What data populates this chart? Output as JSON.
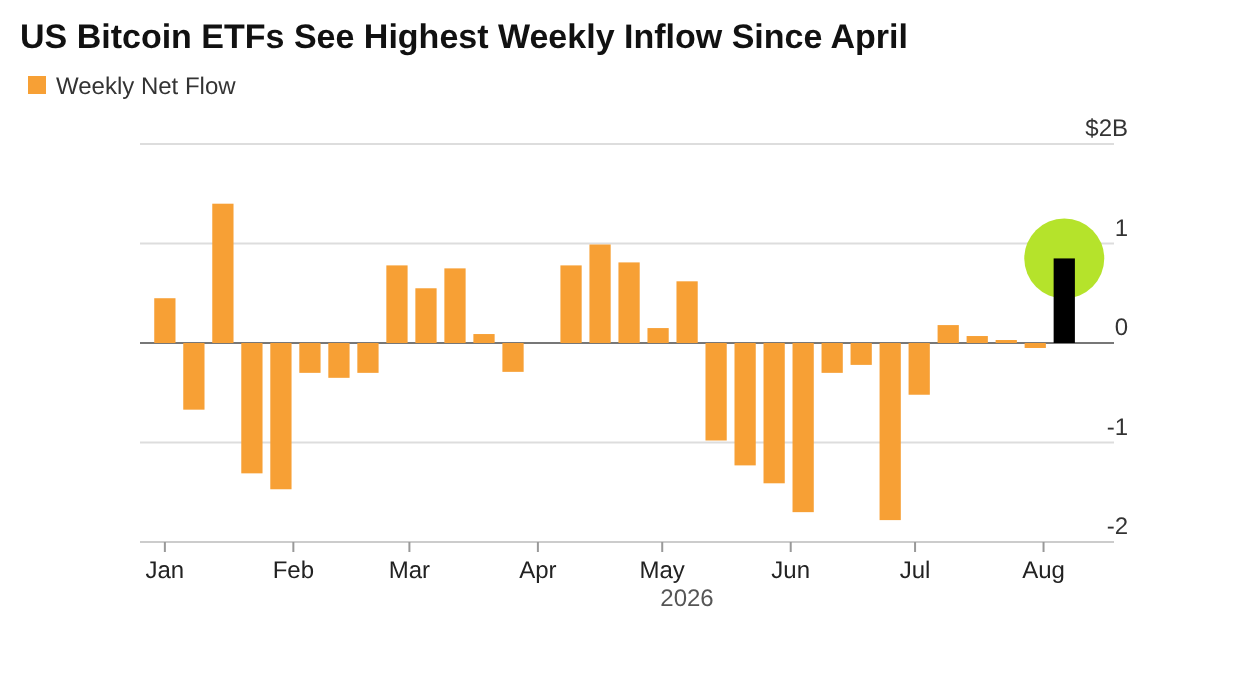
{
  "chart_data": {
    "type": "bar",
    "title": "US Bitcoin ETFs See Highest Weekly Inflow Since April",
    "xlabel": "2026",
    "x": [
      "2026-01-01",
      "2026-01-08",
      "2026-01-15",
      "2026-01-22",
      "2026-01-29",
      "2026-02-05",
      "2026-02-12",
      "2026-02-19",
      "2026-02-26",
      "2026-03-05",
      "2026-03-12",
      "2026-03-19",
      "2026-03-26",
      "2026-04-02",
      "2026-04-09",
      "2026-04-16",
      "2026-04-23",
      "2026-04-30",
      "2026-05-07",
      "2026-05-14",
      "2026-05-21",
      "2026-05-28",
      "2026-06-04",
      "2026-06-11",
      "2026-06-18",
      "2026-06-25",
      "2026-07-02",
      "2026-07-09",
      "2026-07-16",
      "2026-07-23",
      "2026-07-30",
      "2026-08-06"
    ],
    "series": [
      {
        "name": "Weekly Net Flow",
        "color": "#f7a035",
        "values": [
          0.45,
          -0.67,
          1.4,
          -1.31,
          -1.47,
          -0.3,
          -0.35,
          -0.3,
          0.78,
          0.55,
          0.75,
          0.09,
          -0.29,
          0,
          0.78,
          0.99,
          0.81,
          0.15,
          0.62,
          -0.98,
          -1.23,
          -1.41,
          -1.7,
          -0.3,
          -0.22,
          -1.78,
          -0.52,
          0.18,
          0.07,
          0.03,
          -0.05,
          0.85
        ],
        "colors": [
          "#f7a035",
          "#f7a035",
          "#f7a035",
          "#f7a035",
          "#f7a035",
          "#f7a035",
          "#f7a035",
          "#f7a035",
          "#f7a035",
          "#f7a035",
          "#f7a035",
          "#f7a035",
          "#f7a035",
          "#f7a035",
          "#f7a035",
          "#f7a035",
          "#f7a035",
          "#f7a035",
          "#f7a035",
          "#f7a035",
          "#f7a035",
          "#f7a035",
          "#f7a035",
          "#f7a035",
          "#f7a035",
          "#f7a035",
          "#f7a035",
          "#f7a035",
          "#f7a035",
          "#f7a035",
          "#f7a035",
          "#000000"
        ]
      }
    ],
    "xlim": [
      "2025-12-26",
      "2026-08-18"
    ],
    "xticks": [
      {
        "value": "2026-01-01",
        "label": "Jan"
      },
      {
        "value": "2026-02-01",
        "label": "Feb"
      },
      {
        "value": "2026-03-01",
        "label": "Mar"
      },
      {
        "value": "2026-04-01",
        "label": "Apr"
      },
      {
        "value": "2026-05-01",
        "label": "May"
      },
      {
        "value": "2026-06-01",
        "label": "Jun"
      },
      {
        "value": "2026-07-01",
        "label": "Jul"
      },
      {
        "value": "2026-08-01",
        "label": "Aug"
      }
    ],
    "ylim": [
      -2,
      2
    ],
    "yticks": [
      {
        "value": 2,
        "label": "$2B"
      },
      1,
      0,
      -1,
      -2
    ],
    "grid": "y",
    "legend": "top left"
  }
}
